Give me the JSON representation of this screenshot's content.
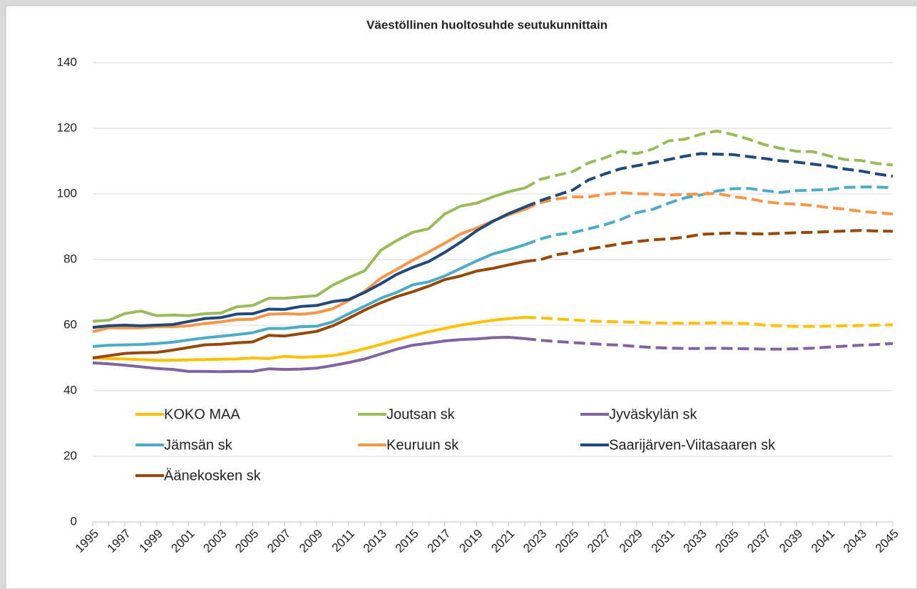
{
  "chart_data": {
    "type": "line",
    "title": "Väestöllinen huoltosuhde seutukunnittain",
    "x": [
      1995,
      1996,
      1997,
      1998,
      1999,
      2000,
      2001,
      2002,
      2003,
      2004,
      2005,
      2006,
      2007,
      2008,
      2009,
      2010,
      2011,
      2012,
      2013,
      2014,
      2015,
      2016,
      2017,
      2018,
      2019,
      2020,
      2021,
      2022,
      2023,
      2024,
      2025,
      2026,
      2027,
      2028,
      2029,
      2030,
      2031,
      2032,
      2033,
      2034,
      2035,
      2036,
      2037,
      2038,
      2039,
      2040,
      2041,
      2042,
      2043,
      2044,
      2045
    ],
    "xlim": [
      1995,
      2045
    ],
    "xticks": [
      1995,
      1997,
      1999,
      2001,
      2003,
      2005,
      2007,
      2009,
      2011,
      2013,
      2015,
      2017,
      2019,
      2021,
      2023,
      2025,
      2027,
      2029,
      2031,
      2033,
      2035,
      2037,
      2039,
      2041,
      2043,
      2045
    ],
    "ylim": [
      0,
      140
    ],
    "yticks": [
      0,
      20,
      40,
      60,
      80,
      100,
      120,
      140
    ],
    "grid": true,
    "legend": "lower left",
    "forecast_from": 2022,
    "series": [
      {
        "name": "KOKO MAA",
        "color": "#ffc000",
        "values": [
          50.0,
          49.8,
          49.7,
          49.5,
          49.3,
          49.3,
          49.4,
          49.5,
          49.6,
          49.7,
          50.0,
          49.8,
          50.5,
          50.2,
          50.4,
          50.7,
          51.6,
          52.8,
          54.1,
          55.5,
          56.8,
          58.0,
          59.0,
          60.0,
          60.8,
          61.5,
          62.0,
          62.4,
          62.2,
          61.9,
          61.6,
          61.3,
          61.1,
          61.0,
          60.9,
          60.7,
          60.6,
          60.6,
          60.6,
          60.7,
          60.6,
          60.5,
          60.0,
          59.8,
          59.6,
          59.6,
          59.7,
          59.8,
          59.9,
          60.0,
          60.1
        ]
      },
      {
        "name": "Joutsan sk",
        "color": "#9bbb59",
        "values": [
          61.2,
          61.5,
          63.5,
          64.3,
          62.9,
          63.1,
          62.9,
          63.5,
          63.7,
          65.6,
          66.0,
          68.2,
          68.2,
          68.6,
          69.0,
          72.2,
          74.5,
          76.6,
          82.8,
          85.8,
          88.3,
          89.4,
          93.9,
          96.3,
          97.2,
          99.1,
          100.7,
          101.8,
          104.5,
          105.7,
          106.8,
          109.5,
          111.0,
          113.0,
          112.3,
          113.7,
          116.2,
          116.7,
          118.2,
          119.2,
          118.1,
          116.7,
          115.0,
          113.9,
          113.0,
          112.9,
          111.6,
          110.5,
          110.2,
          109.3,
          108.8
        ]
      },
      {
        "name": "Jyväskylän sk",
        "color": "#8064a2",
        "values": [
          48.5,
          48.2,
          47.8,
          47.3,
          46.8,
          46.5,
          45.9,
          45.9,
          45.8,
          45.9,
          45.9,
          46.7,
          46.5,
          46.6,
          46.9,
          47.7,
          48.6,
          49.7,
          51.2,
          52.7,
          53.9,
          54.5,
          55.2,
          55.6,
          55.8,
          56.2,
          56.3,
          55.9,
          55.4,
          55.0,
          54.7,
          54.4,
          54.1,
          53.9,
          53.5,
          53.2,
          53.0,
          52.9,
          52.9,
          53.0,
          52.9,
          52.8,
          52.7,
          52.7,
          52.8,
          53.0,
          53.3,
          53.6,
          53.9,
          54.1,
          54.4
        ]
      },
      {
        "name": "Jämsän sk",
        "color": "#4bacc6",
        "values": [
          53.5,
          53.9,
          54.0,
          54.1,
          54.4,
          54.8,
          55.5,
          56.1,
          56.6,
          57.1,
          57.7,
          59.0,
          59.0,
          59.5,
          59.7,
          61.0,
          63.5,
          65.8,
          68.2,
          70.0,
          72.3,
          73.2,
          75.0,
          77.3,
          79.6,
          81.7,
          83.0,
          84.5,
          86.3,
          87.6,
          88.2,
          89.4,
          90.6,
          92.2,
          94.3,
          95.3,
          97.2,
          98.8,
          99.7,
          100.9,
          101.6,
          101.7,
          101.0,
          100.5,
          101.0,
          101.2,
          101.3,
          102.0,
          102.1,
          102.1,
          101.9
        ]
      },
      {
        "name": "Keuruun sk",
        "color": "#f79646",
        "values": [
          58.0,
          59.2,
          59.2,
          59.2,
          59.5,
          59.5,
          59.8,
          60.5,
          61.0,
          61.7,
          61.8,
          63.3,
          63.5,
          63.3,
          63.8,
          65.0,
          67.5,
          70.3,
          74.3,
          77.0,
          79.8,
          82.3,
          85.0,
          87.8,
          89.6,
          91.8,
          93.6,
          95.3,
          97.4,
          98.5,
          99.1,
          99.1,
          99.9,
          100.4,
          100.1,
          100.0,
          99.7,
          99.9,
          100.0,
          100.2,
          99.2,
          98.6,
          97.6,
          97.1,
          96.9,
          96.5,
          95.8,
          95.4,
          94.7,
          94.3,
          93.9
        ]
      },
      {
        "name": "Saarijärven-Viitasaaren sk",
        "color": "#1f497d",
        "values": [
          59.3,
          59.8,
          60.0,
          59.8,
          60.0,
          60.2,
          61.1,
          62.0,
          62.3,
          63.4,
          63.5,
          64.9,
          64.8,
          65.7,
          66.0,
          67.2,
          67.8,
          70.0,
          72.6,
          75.5,
          77.6,
          79.4,
          82.2,
          85.3,
          88.8,
          91.6,
          94.0,
          96.0,
          98.0,
          99.6,
          101.2,
          104.3,
          106.1,
          107.7,
          108.6,
          109.5,
          110.5,
          111.5,
          112.3,
          112.1,
          112.0,
          111.4,
          110.8,
          110.1,
          109.7,
          109.1,
          108.5,
          107.6,
          107.0,
          106.1,
          105.4
        ]
      },
      {
        "name": "Äänekosken sk",
        "color": "#974706",
        "values": [
          50.0,
          50.7,
          51.4,
          51.6,
          51.7,
          52.4,
          53.2,
          54.0,
          54.2,
          54.6,
          54.9,
          56.9,
          56.7,
          57.4,
          58.1,
          59.8,
          62.1,
          64.6,
          66.8,
          68.7,
          70.2,
          71.9,
          73.9,
          75.0,
          76.5,
          77.3,
          78.4,
          79.4,
          80.0,
          81.5,
          82.2,
          83.2,
          84.0,
          84.8,
          85.5,
          86.0,
          86.3,
          86.8,
          87.7,
          87.9,
          88.1,
          87.9,
          87.8,
          88.0,
          88.2,
          88.3,
          88.5,
          88.7,
          88.9,
          88.7,
          88.6
        ]
      }
    ]
  }
}
